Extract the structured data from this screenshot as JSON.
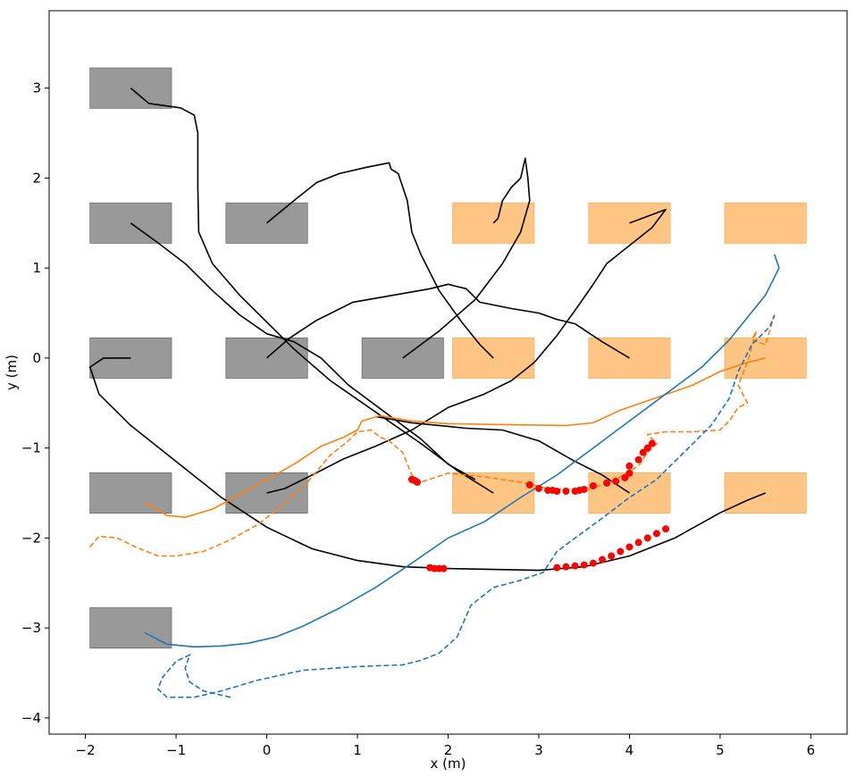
{
  "chart_data": {
    "type": "line",
    "title": "",
    "xlabel": "x (m)",
    "ylabel": "y (m)",
    "xlim": [
      -2.4,
      6.4
    ],
    "ylim": [
      -4.18,
      3.86
    ],
    "xticks": [
      "−2",
      "−1",
      "0",
      "1",
      "2",
      "3",
      "4",
      "5",
      "6"
    ],
    "yticks": [
      "−4",
      "−3",
      "−2",
      "−1",
      "0",
      "1",
      "2",
      "3"
    ],
    "xtick_values": [
      -2,
      -1,
      0,
      1,
      2,
      3,
      4,
      5,
      6
    ],
    "ytick_values": [
      -4,
      -3,
      -2,
      -1,
      0,
      1,
      2,
      3
    ],
    "grid": false,
    "colors": {
      "obstacle_gray": "#7f7f7f",
      "obstacle_orange": "#ff9f33",
      "black": "#000000",
      "orange": "#ff7f0e",
      "blue": "#1f77b4",
      "red": "#ff0000"
    },
    "gray_boxes": [
      {
        "x": -1.5,
        "y": 3.0
      },
      {
        "x": -1.5,
        "y": 1.5
      },
      {
        "x": 0.0,
        "y": 1.5
      },
      {
        "x": -1.5,
        "y": 0.0
      },
      {
        "x": 0.0,
        "y": 0.0
      },
      {
        "x": 1.5,
        "y": 0.0
      },
      {
        "x": -1.5,
        "y": -1.5
      },
      {
        "x": 0.0,
        "y": -1.5
      },
      {
        "x": -1.5,
        "y": -3.0
      }
    ],
    "orange_boxes": [
      {
        "x": 2.5,
        "y": 1.5
      },
      {
        "x": 4.0,
        "y": 1.5
      },
      {
        "x": 5.5,
        "y": 1.5
      },
      {
        "x": 2.5,
        "y": 0.0
      },
      {
        "x": 4.0,
        "y": 0.0
      },
      {
        "x": 5.5,
        "y": 0.0
      },
      {
        "x": 2.5,
        "y": -1.5
      },
      {
        "x": 4.0,
        "y": -1.5
      },
      {
        "x": 5.5,
        "y": -1.5
      }
    ],
    "box_size": [
      0.9,
      0.45
    ],
    "black_paths": [
      [
        [
          -1.5,
          3.0
        ],
        [
          -1.3,
          2.83
        ],
        [
          -0.95,
          2.78
        ],
        [
          -0.8,
          2.7
        ],
        [
          -0.76,
          2.5
        ],
        [
          -0.76,
          1.9
        ],
        [
          -0.75,
          1.4
        ],
        [
          -0.6,
          1.05
        ],
        [
          -0.3,
          0.7
        ],
        [
          0.0,
          0.4
        ],
        [
          0.3,
          0.1
        ],
        [
          0.7,
          -0.25
        ],
        [
          1.2,
          -0.6
        ],
        [
          1.7,
          -0.95
        ],
        [
          2.1,
          -1.25
        ],
        [
          2.5,
          -1.5
        ]
      ],
      [
        [
          -1.5,
          1.5
        ],
        [
          -1.2,
          1.28
        ],
        [
          -0.9,
          1.05
        ],
        [
          -0.6,
          0.75
        ],
        [
          -0.3,
          0.48
        ],
        [
          0.0,
          0.27
        ],
        [
          0.3,
          0.18
        ],
        [
          0.6,
          0.0
        ],
        [
          0.9,
          -0.3
        ],
        [
          1.3,
          -0.6
        ],
        [
          1.7,
          -0.9
        ],
        [
          2.0,
          -1.18
        ],
        [
          2.3,
          -1.35
        ]
      ],
      [
        [
          0.0,
          1.5
        ],
        [
          0.3,
          1.75
        ],
        [
          0.55,
          1.95
        ],
        [
          0.8,
          2.05
        ],
        [
          1.1,
          2.12
        ],
        [
          1.35,
          2.17
        ],
        [
          1.37,
          2.1
        ],
        [
          1.45,
          2.05
        ],
        [
          1.55,
          1.75
        ],
        [
          1.6,
          1.4
        ],
        [
          1.7,
          1.15
        ],
        [
          1.9,
          0.75
        ],
        [
          2.15,
          0.4
        ],
        [
          2.35,
          0.15
        ],
        [
          2.5,
          0.0
        ]
      ],
      [
        [
          0.0,
          0.0
        ],
        [
          0.25,
          0.22
        ],
        [
          0.55,
          0.42
        ],
        [
          0.95,
          0.62
        ],
        [
          1.4,
          0.7
        ],
        [
          1.8,
          0.77
        ],
        [
          2.0,
          0.82
        ],
        [
          2.2,
          0.77
        ],
        [
          2.35,
          0.62
        ],
        [
          2.7,
          0.55
        ],
        [
          3.0,
          0.5
        ],
        [
          3.2,
          0.43
        ],
        [
          3.4,
          0.38
        ],
        [
          3.7,
          0.18
        ],
        [
          4.0,
          0.0
        ]
      ],
      [
        [
          -1.5,
          0.0
        ],
        [
          -1.6,
          0.0
        ],
        [
          -1.8,
          0.0
        ],
        [
          -1.95,
          -0.1
        ],
        [
          -1.85,
          -0.4
        ],
        [
          -1.5,
          -0.75
        ],
        [
          -1.0,
          -1.15
        ],
        [
          -0.5,
          -1.55
        ],
        [
          0.0,
          -1.88
        ],
        [
          0.5,
          -2.12
        ],
        [
          1.0,
          -2.25
        ],
        [
          1.5,
          -2.32
        ],
        [
          2.0,
          -2.34
        ],
        [
          3.0,
          -2.36
        ],
        [
          3.5,
          -2.32
        ],
        [
          4.0,
          -2.2
        ],
        [
          4.5,
          -2.0
        ],
        [
          5.0,
          -1.72
        ],
        [
          5.3,
          -1.58
        ],
        [
          5.5,
          -1.5
        ]
      ],
      [
        [
          0.0,
          -1.5
        ],
        [
          0.2,
          -1.45
        ],
        [
          0.5,
          -1.3
        ],
        [
          0.85,
          -1.12
        ],
        [
          1.2,
          -0.98
        ],
        [
          1.6,
          -0.8
        ],
        [
          2.0,
          -0.55
        ],
        [
          2.4,
          -0.4
        ],
        [
          2.7,
          -0.25
        ],
        [
          2.95,
          -0.05
        ],
        [
          3.2,
          0.25
        ],
        [
          3.45,
          0.6
        ],
        [
          3.6,
          0.82
        ],
        [
          3.75,
          1.05
        ],
        [
          4.0,
          1.25
        ],
        [
          4.25,
          1.45
        ],
        [
          4.4,
          1.65
        ],
        [
          4.0,
          1.5
        ]
      ],
      [
        [
          1.5,
          0.0
        ],
        [
          1.9,
          0.3
        ],
        [
          2.3,
          0.65
        ],
        [
          2.6,
          1.05
        ],
        [
          2.8,
          1.4
        ],
        [
          2.9,
          1.75
        ],
        [
          2.88,
          2.0
        ],
        [
          2.85,
          2.22
        ],
        [
          2.8,
          2.0
        ],
        [
          2.7,
          1.9
        ],
        [
          2.6,
          1.75
        ],
        [
          2.55,
          1.55
        ],
        [
          2.5,
          1.5
        ]
      ],
      [
        [
          1.2,
          -0.65
        ],
        [
          1.6,
          -0.72
        ],
        [
          2.2,
          -0.78
        ],
        [
          2.6,
          -0.8
        ],
        [
          3.0,
          -0.92
        ],
        [
          3.4,
          -1.15
        ],
        [
          3.7,
          -1.3
        ],
        [
          4.0,
          -1.5
        ]
      ]
    ],
    "orange_solid": [
      [
        -1.35,
        -1.6
      ],
      [
        -1.1,
        -1.75
      ],
      [
        -0.9,
        -1.77
      ],
      [
        -0.6,
        -1.68
      ],
      [
        -0.3,
        -1.52
      ],
      [
        0.0,
        -1.35
      ],
      [
        0.3,
        -1.18
      ],
      [
        0.6,
        -0.98
      ],
      [
        0.85,
        -0.88
      ],
      [
        1.0,
        -0.8
      ],
      [
        1.05,
        -0.7
      ],
      [
        1.25,
        -0.64
      ],
      [
        1.6,
        -0.7
      ],
      [
        2.0,
        -0.73
      ],
      [
        2.6,
        -0.74
      ],
      [
        3.3,
        -0.75
      ],
      [
        3.6,
        -0.72
      ],
      [
        3.9,
        -0.58
      ],
      [
        4.3,
        -0.44
      ],
      [
        4.7,
        -0.3
      ],
      [
        5.0,
        -0.15
      ],
      [
        5.3,
        -0.05
      ],
      [
        5.5,
        0.0
      ]
    ],
    "orange_dashed": [
      [
        -1.95,
        -2.1
      ],
      [
        -1.85,
        -1.98
      ],
      [
        -1.65,
        -2.0
      ],
      [
        -1.45,
        -2.1
      ],
      [
        -1.2,
        -2.2
      ],
      [
        -1.0,
        -2.2
      ],
      [
        -0.7,
        -2.15
      ],
      [
        -0.4,
        -2.02
      ],
      [
        -0.1,
        -1.85
      ],
      [
        0.2,
        -1.62
      ],
      [
        0.45,
        -1.38
      ],
      [
        0.7,
        -1.08
      ],
      [
        0.9,
        -0.92
      ],
      [
        1.0,
        -0.82
      ],
      [
        1.15,
        -0.8
      ],
      [
        1.25,
        -0.88
      ],
      [
        1.35,
        -0.92
      ],
      [
        1.5,
        -1.05
      ],
      [
        1.6,
        -1.3
      ],
      [
        1.7,
        -1.38
      ],
      [
        2.0,
        -1.28
      ],
      [
        2.4,
        -1.32
      ],
      [
        2.8,
        -1.38
      ],
      [
        3.1,
        -1.45
      ],
      [
        3.5,
        -1.47
      ],
      [
        3.8,
        -1.38
      ],
      [
        4.1,
        -1.2
      ],
      [
        4.2,
        -1.05
      ],
      [
        4.3,
        -0.95
      ],
      [
        4.2,
        -0.85
      ],
      [
        4.4,
        -0.82
      ],
      [
        4.7,
        -0.82
      ],
      [
        5.0,
        -0.8
      ],
      [
        5.1,
        -0.7
      ],
      [
        5.2,
        -0.55
      ],
      [
        5.3,
        -0.5
      ],
      [
        5.2,
        -0.3
      ],
      [
        5.3,
        -0.05
      ],
      [
        5.4,
        0.3
      ],
      [
        5.35,
        0.2
      ],
      [
        5.5,
        0.15
      ],
      [
        5.6,
        0.48
      ]
    ],
    "blue_solid": [
      [
        -1.35,
        -3.05
      ],
      [
        -1.1,
        -3.18
      ],
      [
        -0.8,
        -3.21
      ],
      [
        -0.5,
        -3.2
      ],
      [
        -0.2,
        -3.17
      ],
      [
        0.1,
        -3.1
      ],
      [
        0.4,
        -2.98
      ],
      [
        0.8,
        -2.78
      ],
      [
        1.2,
        -2.55
      ],
      [
        1.6,
        -2.28
      ],
      [
        2.0,
        -2.0
      ],
      [
        2.4,
        -1.82
      ],
      [
        2.8,
        -1.55
      ],
      [
        3.2,
        -1.3
      ],
      [
        3.6,
        -1.0
      ],
      [
        4.0,
        -0.7
      ],
      [
        4.4,
        -0.4
      ],
      [
        4.8,
        -0.1
      ],
      [
        5.1,
        0.2
      ],
      [
        5.3,
        0.45
      ],
      [
        5.5,
        0.7
      ],
      [
        5.65,
        1.0
      ],
      [
        5.6,
        1.15
      ]
    ],
    "blue_dashed": [
      [
        -0.4,
        -3.77
      ],
      [
        -0.7,
        -3.7
      ],
      [
        -0.85,
        -3.6
      ],
      [
        -0.9,
        -3.45
      ],
      [
        -0.85,
        -3.3
      ],
      [
        -1.0,
        -3.37
      ],
      [
        -1.15,
        -3.55
      ],
      [
        -1.2,
        -3.68
      ],
      [
        -1.1,
        -3.77
      ],
      [
        -0.8,
        -3.77
      ],
      [
        -0.5,
        -3.7
      ],
      [
        -0.1,
        -3.58
      ],
      [
        0.4,
        -3.47
      ],
      [
        1.0,
        -3.43
      ],
      [
        1.5,
        -3.41
      ],
      [
        1.7,
        -3.36
      ],
      [
        1.9,
        -3.28
      ],
      [
        2.1,
        -3.1
      ],
      [
        2.25,
        -2.75
      ],
      [
        2.5,
        -2.55
      ],
      [
        2.8,
        -2.47
      ],
      [
        3.05,
        -2.38
      ],
      [
        3.2,
        -2.15
      ],
      [
        3.4,
        -2.0
      ],
      [
        3.7,
        -1.78
      ],
      [
        4.0,
        -1.55
      ],
      [
        4.3,
        -1.35
      ],
      [
        4.5,
        -1.15
      ],
      [
        4.7,
        -0.95
      ],
      [
        4.9,
        -0.75
      ],
      [
        5.1,
        -0.45
      ],
      [
        5.2,
        -0.15
      ],
      [
        5.35,
        0.15
      ],
      [
        5.55,
        0.35
      ],
      [
        5.6,
        0.48
      ]
    ],
    "red_points": [
      [
        1.6,
        -1.35
      ],
      [
        1.63,
        -1.36
      ],
      [
        1.66,
        -1.38
      ],
      [
        1.8,
        -2.33
      ],
      [
        1.85,
        -2.34
      ],
      [
        1.9,
        -2.34
      ],
      [
        1.95,
        -2.34
      ],
      [
        2.9,
        -1.41
      ],
      [
        3.0,
        -1.45
      ],
      [
        3.1,
        -1.47
      ],
      [
        3.15,
        -1.47
      ],
      [
        3.2,
        -1.48
      ],
      [
        3.3,
        -1.48
      ],
      [
        3.4,
        -1.48
      ],
      [
        3.45,
        -1.47
      ],
      [
        3.5,
        -1.46
      ],
      [
        3.6,
        -1.42
      ],
      [
        3.75,
        -1.39
      ],
      [
        3.85,
        -1.37
      ],
      [
        3.95,
        -1.33
      ],
      [
        4.0,
        -1.28
      ],
      [
        4.0,
        -1.2
      ],
      [
        4.1,
        -1.13
      ],
      [
        4.15,
        -1.05
      ],
      [
        4.2,
        -1.0
      ],
      [
        4.25,
        -0.95
      ],
      [
        3.2,
        -2.33
      ],
      [
        3.3,
        -2.32
      ],
      [
        3.4,
        -2.31
      ],
      [
        3.5,
        -2.3
      ],
      [
        3.6,
        -2.28
      ],
      [
        3.7,
        -2.24
      ],
      [
        3.8,
        -2.2
      ],
      [
        3.9,
        -2.15
      ],
      [
        4.0,
        -2.1
      ],
      [
        4.1,
        -2.05
      ],
      [
        4.2,
        -2.0
      ],
      [
        4.3,
        -1.95
      ],
      [
        4.4,
        -1.9
      ]
    ]
  }
}
